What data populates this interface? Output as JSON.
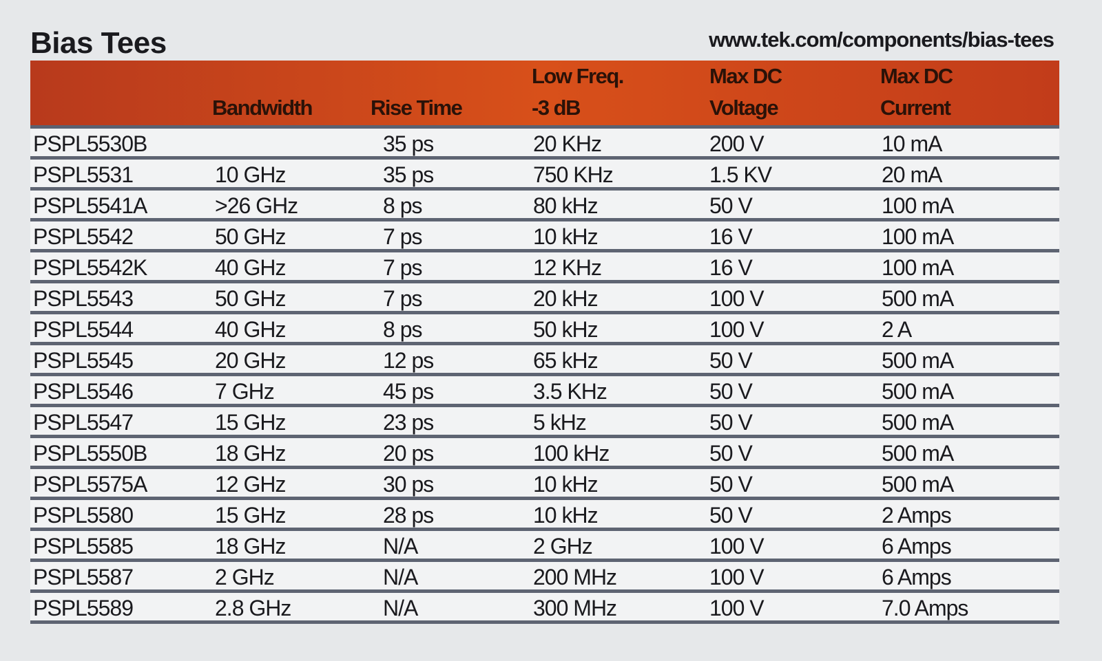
{
  "title": "Bias Tees",
  "url": "www.tek.com/components/bias-tees",
  "header_color": "#cc4a1c",
  "columns": [
    "",
    "Bandwidth",
    "Rise Time",
    "Low Freq.\n-3 dB",
    "Max DC\nVoltage",
    "Max DC\nCurrent"
  ],
  "column_lines": [
    {
      "l1": "Low Freq.",
      "l2": "-3 dB"
    },
    {
      "l1": "Max DC",
      "l2": "Voltage"
    },
    {
      "l1": "Max DC",
      "l2": "Current"
    }
  ],
  "rows": [
    [
      "PSPL5530B",
      "",
      "35 ps",
      "20 KHz",
      "200 V",
      "10 mA"
    ],
    [
      "PSPL5531",
      "10 GHz",
      "35 ps",
      "750 KHz",
      "1.5 KV",
      "20 mA"
    ],
    [
      "PSPL5541A",
      ">26 GHz",
      "8 ps",
      "80 kHz",
      "50 V",
      "100 mA"
    ],
    [
      "PSPL5542",
      "50 GHz",
      "7 ps",
      "10 kHz",
      "16 V",
      "100 mA"
    ],
    [
      "PSPL5542K",
      "40 GHz",
      "7 ps",
      "12 KHz",
      "16 V",
      "100 mA"
    ],
    [
      "PSPL5543",
      "50 GHz",
      "7 ps",
      "20 kHz",
      "100 V",
      "500 mA"
    ],
    [
      "PSPL5544",
      "40 GHz",
      "8 ps",
      "50 kHz",
      "100 V",
      "2 A"
    ],
    [
      "PSPL5545",
      "20 GHz",
      "12 ps",
      "65 kHz",
      "50 V",
      "500 mA"
    ],
    [
      "PSPL5546",
      "7 GHz",
      "45 ps",
      "3.5 KHz",
      "50 V",
      "500 mA"
    ],
    [
      "PSPL5547",
      "15 GHz",
      "23 ps",
      "5 kHz",
      "50 V",
      "500 mA"
    ],
    [
      "PSPL5550B",
      "18 GHz",
      "20 ps",
      "100 kHz",
      "50 V",
      "500 mA"
    ],
    [
      "PSPL5575A",
      "12 GHz",
      "30 ps",
      "10 kHz",
      "50 V",
      "500 mA"
    ],
    [
      "PSPL5580",
      "15 GHz",
      "28 ps",
      "10 kHz",
      "50 V",
      "2 Amps"
    ],
    [
      "PSPL5585",
      "18 GHz",
      "N/A",
      "2 GHz",
      "100 V",
      "6 Amps"
    ],
    [
      "PSPL5587",
      "2 GHz",
      "N/A",
      "200 MHz",
      "100 V",
      "6 Amps"
    ],
    [
      "PSPL5589",
      "2.8 GHz",
      "N/A",
      "300 MHz",
      "100 V",
      "7.0 Amps"
    ]
  ]
}
